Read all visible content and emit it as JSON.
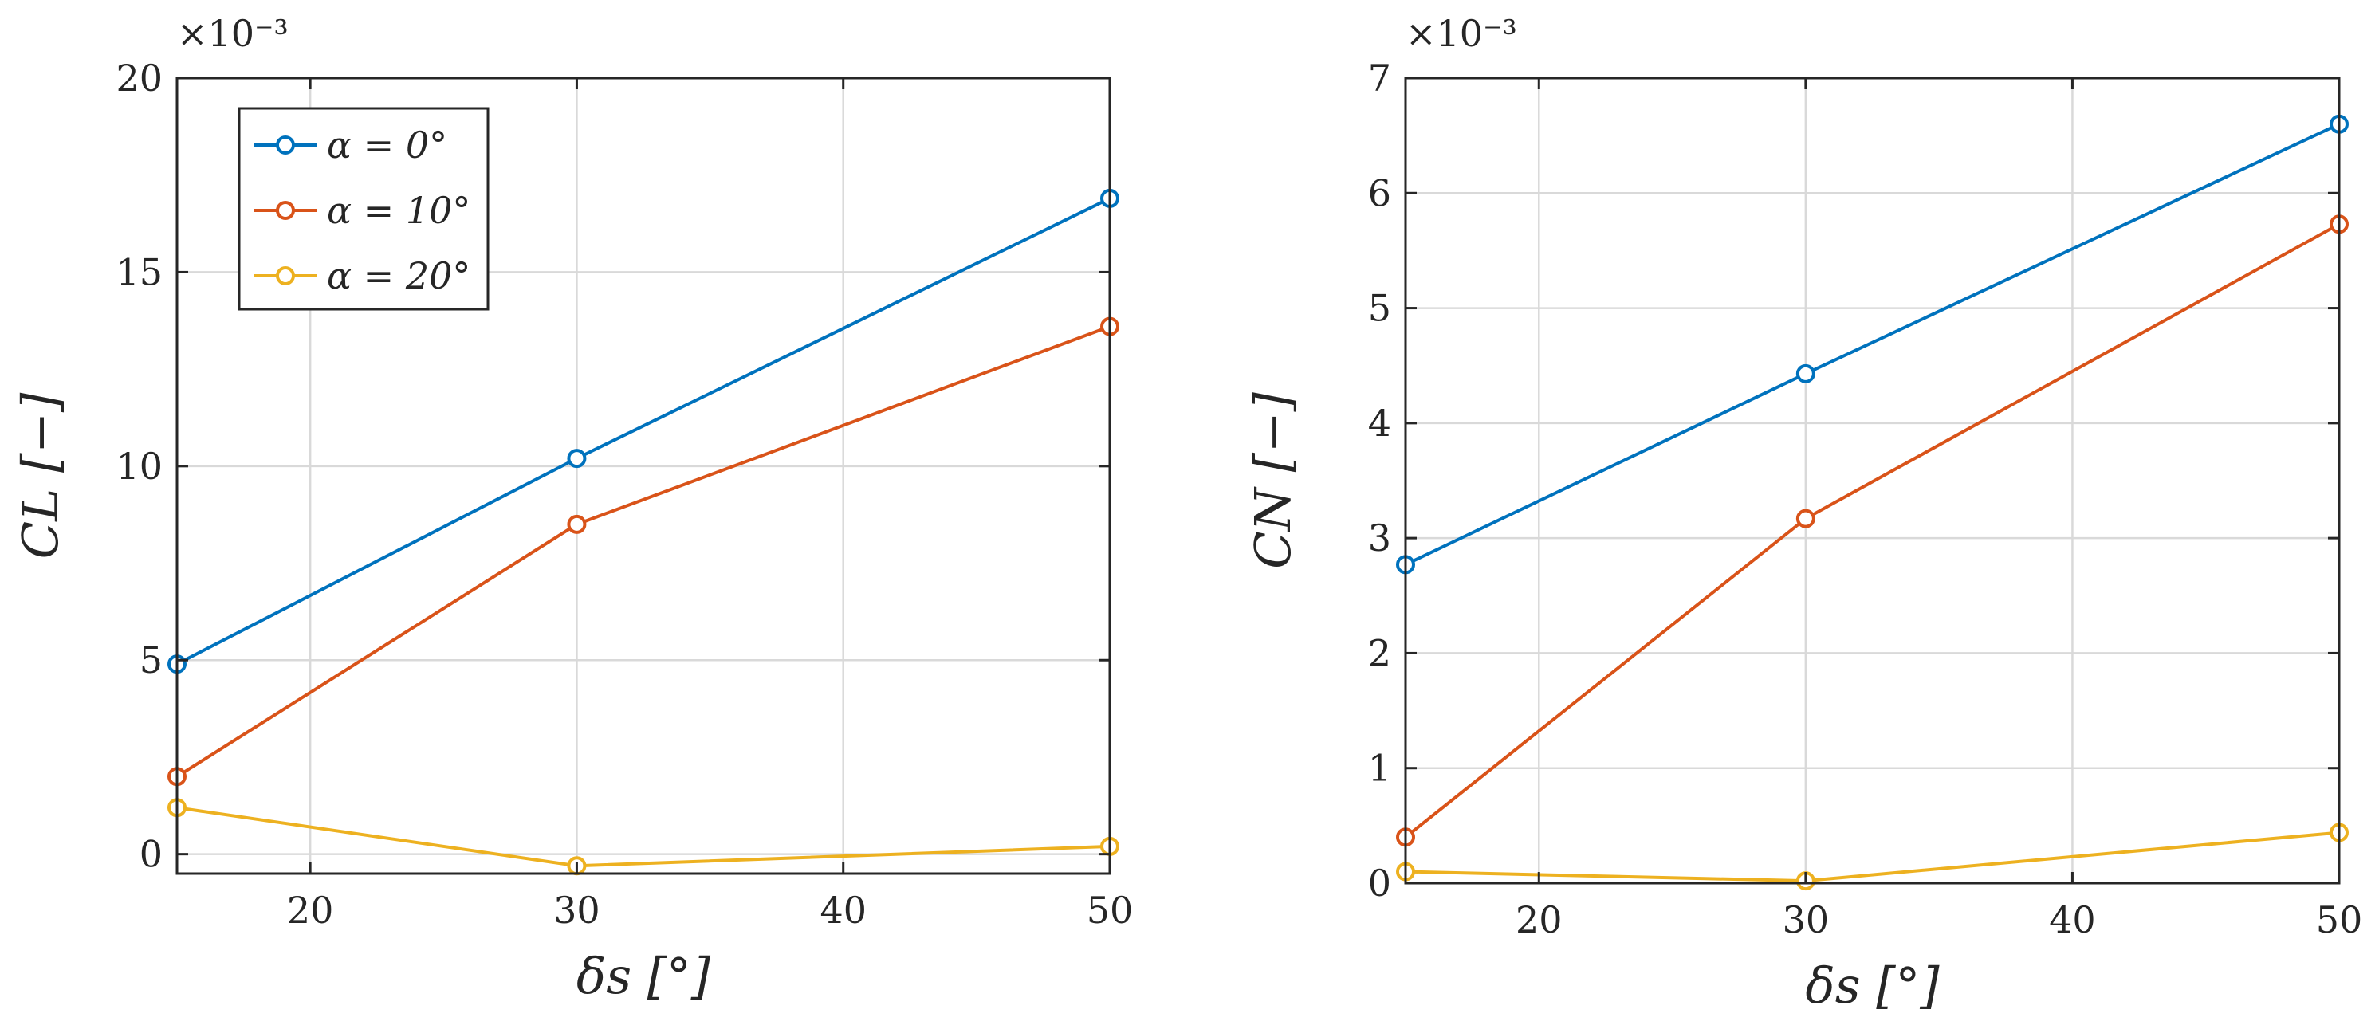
{
  "colors": {
    "blue": "#0072BD",
    "orange": "#D95319",
    "yellow": "#EDB120",
    "axis": "#262626",
    "grid": "#d9d9d9"
  },
  "legend": {
    "entries": [
      "α = 0°",
      "α = 10°",
      "α = 20°"
    ],
    "placement": "top-left"
  },
  "chart_data": [
    {
      "type": "line",
      "title": "",
      "xlabel": "δs [°]",
      "ylabel": "CL [−]",
      "y_multiplier": "×10⁻³",
      "x": [
        15,
        30,
        50
      ],
      "xlim": [
        15,
        50
      ],
      "ylim": [
        -0.5,
        20
      ],
      "xticks": [
        "20",
        "30",
        "40",
        "50"
      ],
      "yticks": [
        "0",
        "5",
        "10",
        "15",
        "20"
      ],
      "grid": true,
      "legend_placement": "top-left",
      "series": [
        {
          "name": "α = 0°",
          "values": [
            4.9,
            10.2,
            16.9
          ]
        },
        {
          "name": "α = 10°",
          "values": [
            2.0,
            8.5,
            13.6
          ]
        },
        {
          "name": "α = 20°",
          "values": [
            1.2,
            -0.3,
            0.2
          ]
        }
      ]
    },
    {
      "type": "line",
      "title": "",
      "xlabel": "δs [°]",
      "ylabel": "CN [−]",
      "y_multiplier": "×10⁻³",
      "x": [
        15,
        30,
        50
      ],
      "xlim": [
        15,
        50
      ],
      "ylim": [
        0,
        7
      ],
      "xticks": [
        "20",
        "30",
        "40",
        "50"
      ],
      "yticks": [
        "0",
        "1",
        "2",
        "3",
        "4",
        "5",
        "6",
        "7"
      ],
      "grid": true,
      "series": [
        {
          "name": "α = 0°",
          "values": [
            2.77,
            4.43,
            6.6
          ]
        },
        {
          "name": "α = 10°",
          "values": [
            0.4,
            3.17,
            5.73
          ]
        },
        {
          "name": "α = 20°",
          "values": [
            0.1,
            0.02,
            0.44
          ]
        }
      ]
    }
  ]
}
